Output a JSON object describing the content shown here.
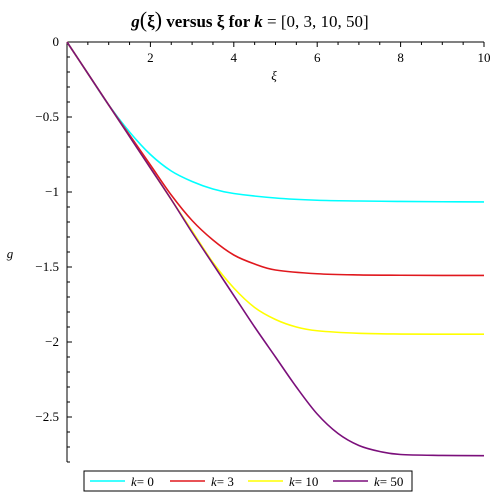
{
  "chart_data": {
    "type": "line",
    "title": {
      "fn": "g",
      "lparen": "(",
      "arg": "ξ",
      "rparen": ")",
      "versus": " versus ",
      "xvar": "ξ",
      "for": " for ",
      "param": "k",
      "eq": " = [0, 3, 10, 50]"
    },
    "xlabel": "ξ",
    "ylabel": "g",
    "xlim": [
      0,
      10
    ],
    "ylim": [
      -2.8,
      0
    ],
    "xticks": [
      2,
      4,
      6,
      8,
      10
    ],
    "yticks": [
      0,
      -0.5,
      -1,
      -1.5,
      -2,
      -2.5
    ],
    "ytick_labels": [
      "0",
      "−0.5",
      "−1",
      "−1.5",
      "−2",
      "−2.5"
    ],
    "grid": false,
    "legend_position": "bottom",
    "series": [
      {
        "name": "k= 0",
        "param": "k",
        "eq": "= 0",
        "color": "#00ffff",
        "x": [
          0,
          0.5,
          1,
          1.5,
          2,
          2.5,
          3,
          3.5,
          4,
          5,
          6,
          7,
          8,
          9,
          10
        ],
        "y": [
          0,
          -0.21,
          -0.42,
          -0.6,
          -0.75,
          -0.86,
          -0.93,
          -0.98,
          -1.01,
          -1.04,
          -1.055,
          -1.06,
          -1.063,
          -1.065,
          -1.066
        ]
      },
      {
        "name": "k= 3",
        "param": "k",
        "eq": "= 3",
        "color": "#e0181e",
        "x": [
          0,
          0.5,
          1,
          1.5,
          2,
          2.5,
          3,
          3.5,
          4,
          4.5,
          5,
          6,
          7,
          8,
          9,
          10
        ],
        "y": [
          0,
          -0.21,
          -0.42,
          -0.62,
          -0.82,
          -1.02,
          -1.19,
          -1.32,
          -1.42,
          -1.48,
          -1.52,
          -1.545,
          -1.553,
          -1.555,
          -1.556,
          -1.556
        ]
      },
      {
        "name": "k= 10",
        "param": "k",
        "eq": "= 10",
        "color": "#ffff00",
        "x": [
          0,
          0.5,
          1,
          1.5,
          2,
          2.5,
          3,
          3.5,
          4,
          4.5,
          5,
          5.5,
          6,
          7,
          8,
          9,
          10
        ],
        "y": [
          0,
          -0.21,
          -0.42,
          -0.63,
          -0.84,
          -1.05,
          -1.26,
          -1.47,
          -1.64,
          -1.77,
          -1.85,
          -1.9,
          -1.925,
          -1.942,
          -1.947,
          -1.948,
          -1.948
        ]
      },
      {
        "name": "k= 50",
        "param": "k",
        "eq": "= 50",
        "color": "#7b0f7b",
        "x": [
          0,
          0.5,
          1,
          1.5,
          2,
          2.5,
          3,
          3.5,
          4,
          4.5,
          5,
          5.5,
          6,
          6.5,
          7,
          7.5,
          8,
          9,
          10
        ],
        "y": [
          0,
          -0.21,
          -0.42,
          -0.63,
          -0.84,
          -1.05,
          -1.27,
          -1.48,
          -1.69,
          -1.9,
          -2.1,
          -2.3,
          -2.48,
          -2.61,
          -2.69,
          -2.73,
          -2.75,
          -2.756,
          -2.758
        ]
      }
    ]
  }
}
